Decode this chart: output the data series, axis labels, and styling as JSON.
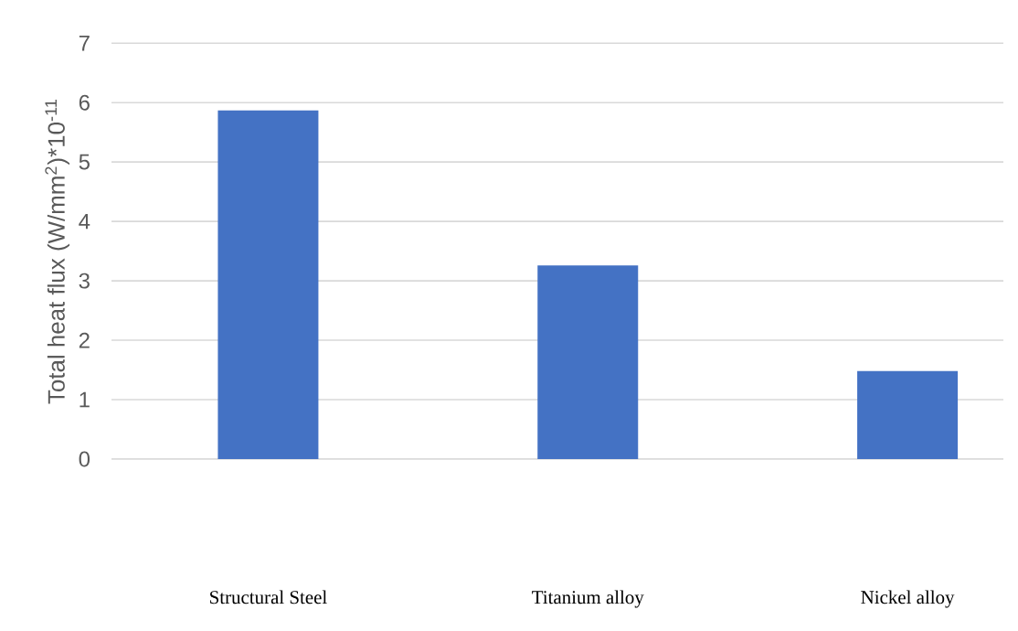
{
  "chart_data": {
    "type": "bar",
    "ylabel": "Total heat flux (W/mm$^{2}$)*10$^{-11}$",
    "categories": [
      "Structural Steel",
      "Titanium alloy",
      "Nickel alloy"
    ],
    "values": [
      5.87,
      3.26,
      1.48
    ],
    "color": "#4472c4",
    "ylim": [
      0,
      7
    ],
    "yticks": [
      0,
      1,
      2,
      3,
      4,
      5,
      6,
      7
    ],
    "grid": "y"
  }
}
